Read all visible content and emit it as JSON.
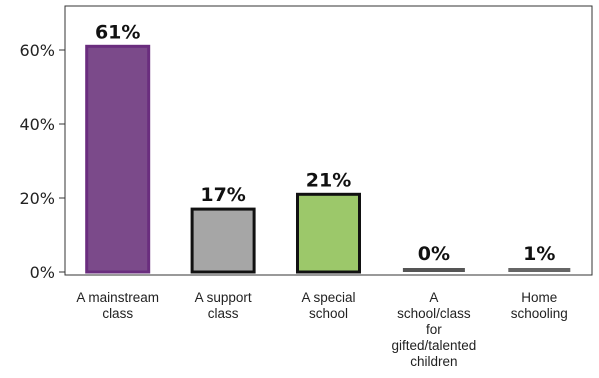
{
  "chart_data": {
    "type": "bar",
    "categories": [
      "A mainstream class",
      "A support class",
      "A special school",
      "A school/class for gifted/talented children",
      "Home schooling"
    ],
    "category_lines": [
      [
        "A mainstream",
        "class"
      ],
      [
        "A support",
        "class"
      ],
      [
        "A special",
        "school"
      ],
      [
        "A",
        "school/class",
        "for",
        "gifted/talented",
        "children"
      ],
      [
        "Home",
        "schooling"
      ]
    ],
    "values": [
      61,
      17,
      21,
      0,
      1
    ],
    "data_labels": [
      "61%",
      "17%",
      "21%",
      "0%",
      "1%"
    ],
    "bar_colors": [
      "#7b4a8a",
      "#a6a6a6",
      "#9cc86a",
      "#555555",
      "#666666"
    ],
    "bar_edge_colors": [
      "#6a2d7e",
      "#111111",
      "#111111",
      "#111111",
      "#555555"
    ],
    "ylim": [
      0,
      70
    ],
    "yticks": [
      0,
      20,
      40,
      60
    ],
    "ytick_labels": [
      "0%",
      "20%",
      "40%",
      "60%"
    ],
    "grid": false,
    "legend": "none"
  }
}
